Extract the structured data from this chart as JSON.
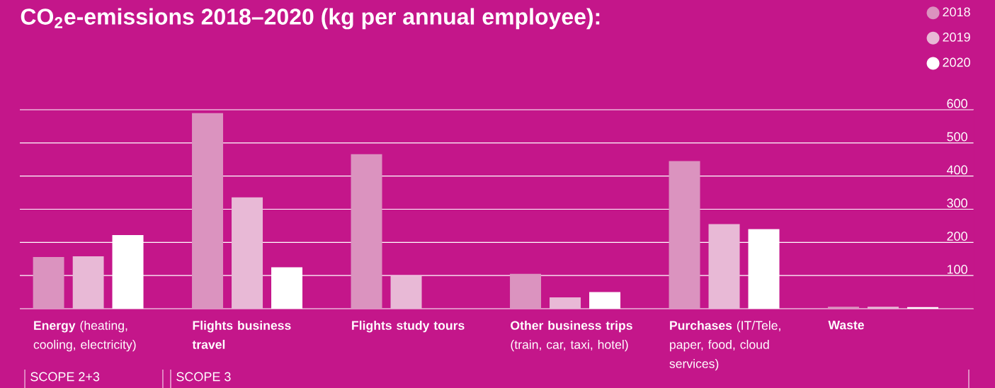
{
  "chart_data": {
    "type": "bar",
    "title": "CO$_{2}$e-emissions 2018–2020 (kg per annual employee):",
    "categories": [
      "**Energy** (heating, cooling, electricity)",
      "**Flights business travel**",
      "**Flights study tours**",
      "**Other business trips** (train, car, taxi, hotel)",
      "**Purchases** (IT/Tele, paper, food, cloud services)",
      "**Waste**"
    ],
    "series": [
      {
        "name": "2018",
        "color": "#db93bf",
        "values": [
          156,
          590,
          466,
          105,
          445,
          6
        ]
      },
      {
        "name": "2019",
        "color": "#e8b9d6",
        "values": [
          158,
          336,
          98,
          34,
          255,
          6
        ]
      },
      {
        "name": "2020",
        "color": "#ffffff",
        "values": [
          222,
          125,
          null,
          50,
          240,
          5
        ]
      }
    ],
    "ylim": [
      0,
      600
    ],
    "yticks": [
      100,
      200,
      300,
      400,
      500,
      600
    ],
    "grid": "y",
    "legend": "top right",
    "annotations": [
      "SCOPE 2+3",
      "SCOPE 3"
    ]
  }
}
